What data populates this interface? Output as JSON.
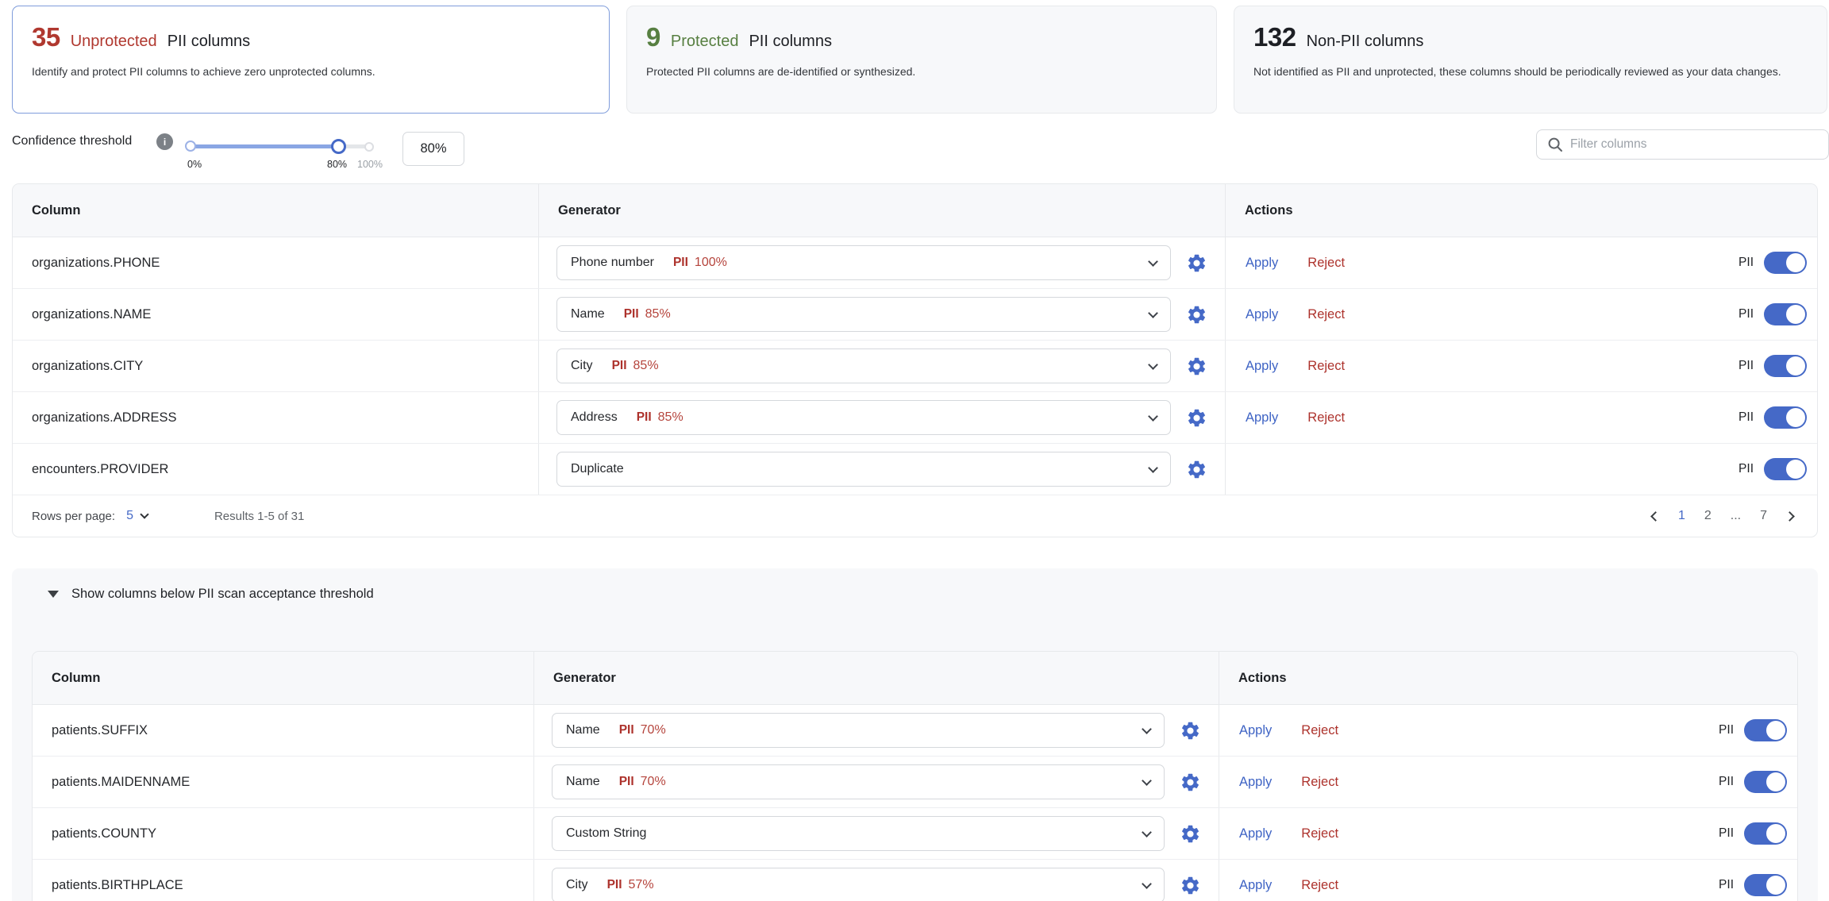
{
  "colors": {
    "accent_blue": "#4569c7",
    "alert_red": "#ad322c",
    "success_green": "#577f41"
  },
  "labels": {
    "pii": "PII",
    "apply": "Apply",
    "reject": "Reject"
  },
  "summary_cards": [
    {
      "count": "35",
      "highlight": "Unprotected",
      "title": "PII columns",
      "description": "Identify and protect PII columns to achieve zero unprotected columns.",
      "state": "selected",
      "color": "#b0382f"
    },
    {
      "count": "9",
      "highlight": "Protected",
      "title": "PII columns",
      "description": "Protected PII columns are de-identified or synthesized.",
      "state": "default",
      "color": "#577f41"
    },
    {
      "count": "132",
      "highlight": "",
      "title": "Non-PII columns",
      "description": "Not identified as PII and unprotected, these columns should be periodically reviewed as your data changes.",
      "state": "default",
      "color": "#1d1f24"
    }
  ],
  "threshold": {
    "label": "Confidence threshold",
    "ticks": [
      "0%",
      "80%",
      "100%"
    ],
    "value": "80%",
    "percent": 80
  },
  "filter": {
    "placeholder": "Filter columns"
  },
  "tables": {
    "main": {
      "headers": {
        "column": "Column",
        "generator": "Generator",
        "actions": "Actions"
      },
      "rows": [
        {
          "column": "organizations.PHONE",
          "generator": "Phone number",
          "badge": "PII",
          "confidence": "100%",
          "actions": true,
          "pii_on": true
        },
        {
          "column": "organizations.NAME",
          "generator": "Name",
          "badge": "PII",
          "confidence": "85%",
          "actions": true,
          "pii_on": true
        },
        {
          "column": "organizations.CITY",
          "generator": "City",
          "badge": "PII",
          "confidence": "85%",
          "actions": true,
          "pii_on": true
        },
        {
          "column": "organizations.ADDRESS",
          "generator": "Address",
          "badge": "PII",
          "confidence": "85%",
          "actions": true,
          "pii_on": true
        },
        {
          "column": "encounters.PROVIDER",
          "generator": "Duplicate",
          "badge": "",
          "confidence": "",
          "actions": false,
          "pii_on": true
        }
      ],
      "footer": {
        "rows_per_page_label": "Rows per page:",
        "rows_per_page_value": "5",
        "results_text": "Results 1-5 of 31",
        "pagination": {
          "pages": [
            {
              "label": "1",
              "current": true
            },
            {
              "label": "2",
              "current": false
            },
            {
              "label": "...",
              "current": false
            },
            {
              "label": "7",
              "current": false
            }
          ]
        }
      }
    },
    "below_threshold": {
      "section_label": "Show columns below PII scan acceptance threshold",
      "headers": {
        "column": "Column",
        "generator": "Generator",
        "actions": "Actions"
      },
      "rows": [
        {
          "column": "patients.SUFFIX",
          "generator": "Name",
          "badge": "PII",
          "confidence": "70%",
          "actions": true,
          "pii_on": true
        },
        {
          "column": "patients.MAIDENNAME",
          "generator": "Name",
          "badge": "PII",
          "confidence": "70%",
          "actions": true,
          "pii_on": true
        },
        {
          "column": "patients.COUNTY",
          "generator": "Custom String",
          "badge": "",
          "confidence": "",
          "actions": true,
          "pii_on": true
        },
        {
          "column": "patients.BIRTHPLACE",
          "generator": "City",
          "badge": "PII",
          "confidence": "57%",
          "actions": true,
          "pii_on": true
        }
      ]
    }
  }
}
